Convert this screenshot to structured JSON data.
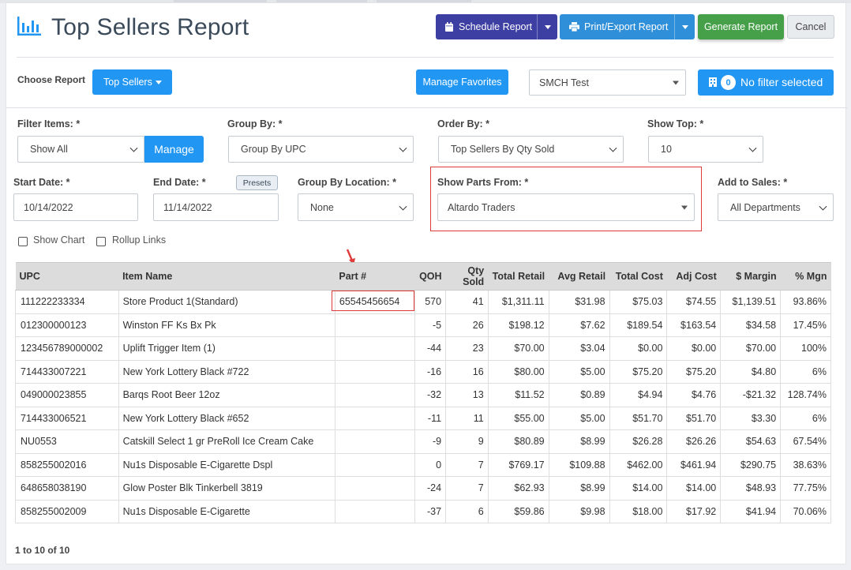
{
  "header": {
    "title": "Top Sellers Report",
    "schedule_label": "Schedule Report",
    "print_label": "Print/Export Report",
    "generate_label": "Generate Report",
    "cancel_label": "Cancel"
  },
  "choose_report": {
    "label": "Choose Report",
    "dropdown_label": "Top Sellers",
    "manage_favorites_label": "Manage Favorites",
    "store_select_value": "SMCH Test",
    "filter_count": "0",
    "filter_status": "No filter selected"
  },
  "filters": {
    "filter_items_label": "Filter Items: *",
    "filter_items_value": "Show All",
    "manage_label": "Manage",
    "group_by_label": "Group By: *",
    "group_by_value": "Group By UPC",
    "order_by_label": "Order By: *",
    "order_by_value": "Top Sellers By Qty Sold",
    "show_top_label": "Show Top: *",
    "show_top_value": "10",
    "start_date_label": "Start Date: *",
    "start_date_value": "10/14/2022",
    "end_date_label": "End Date: *",
    "end_date_value": "11/14/2022",
    "presets_label": "Presets",
    "group_by_location_label": "Group By Location: *",
    "group_by_location_value": "None",
    "show_parts_from_label": "Show Parts From: *",
    "show_parts_from_value": "Altardo Traders",
    "add_to_sales_label": "Add to Sales: *",
    "add_to_sales_value": "All Departments",
    "show_chart_label": "Show Chart",
    "rollup_links_label": "Rollup Links"
  },
  "table": {
    "headers": [
      "UPC",
      "Item Name",
      "Part #",
      "QOH",
      "Qty Sold",
      "Total Retail",
      "Avg Retail",
      "Total Cost",
      "Adj Cost",
      "$ Margin",
      "% Mgn"
    ],
    "rows": [
      [
        "111222233334",
        "Store Product 1(Standard)",
        "65545456654",
        "570",
        "41",
        "$1,311.11",
        "$31.98",
        "$75.03",
        "$74.55",
        "$1,139.51",
        "93.86%"
      ],
      [
        "012300000123",
        "Winston FF Ks Bx Pk",
        "",
        "-5",
        "26",
        "$198.12",
        "$7.62",
        "$189.54",
        "$163.54",
        "$34.58",
        "17.45%"
      ],
      [
        "123456789000002",
        "Uplift Trigger Item (1)",
        "",
        "-44",
        "23",
        "$70.00",
        "$3.04",
        "$0.00",
        "$0.00",
        "$70.00",
        "100%"
      ],
      [
        "714433007221",
        "New York Lottery Black #722",
        "",
        "-16",
        "16",
        "$80.00",
        "$5.00",
        "$75.20",
        "$75.20",
        "$4.80",
        "6%"
      ],
      [
        "049000023855",
        "Barqs Root Beer 12oz",
        "",
        "-32",
        "13",
        "$11.52",
        "$0.89",
        "$4.94",
        "$4.76",
        "-$21.32",
        "128.74%"
      ],
      [
        "714433006521",
        "New York Lottery Black #652",
        "",
        "-11",
        "11",
        "$55.00",
        "$5.00",
        "$51.70",
        "$51.70",
        "$3.30",
        "6%"
      ],
      [
        "NU0553",
        "Catskill Select 1 gr PreRoll Ice Cream Cake",
        "",
        "-9",
        "9",
        "$80.89",
        "$8.99",
        "$26.28",
        "$26.26",
        "$54.63",
        "67.54%"
      ],
      [
        "858255002016",
        "Nu1s Disposable E-Cigarette Dspl",
        "",
        "0",
        "7",
        "$769.17",
        "$109.88",
        "$462.00",
        "$461.94",
        "$290.75",
        "38.63%"
      ],
      [
        "648658038190",
        "Glow Poster Blk Tinkerbell 3819",
        "",
        "-24",
        "7",
        "$62.93",
        "$8.99",
        "$14.00",
        "$14.00",
        "$48.93",
        "77.75%"
      ],
      [
        "858255002009",
        "Nu1s Disposable E-Cigarette",
        "",
        "-37",
        "6",
        "$59.86",
        "$9.98",
        "$18.00",
        "$17.92",
        "$41.94",
        "70.06%"
      ]
    ]
  },
  "pager": {
    "text": "1 to 10 of 10"
  },
  "colors": {
    "title": "#3b4a5a",
    "schedule": "#3d3fa3",
    "print": "#2f8fd8",
    "generate": "#45a049",
    "primary": "#2196f3",
    "highlight": "#e03b3b"
  },
  "icons": [
    "bar-chart-icon",
    "calendar-icon",
    "printer-icon",
    "building-icon",
    "arrow-annotation-icon"
  ]
}
